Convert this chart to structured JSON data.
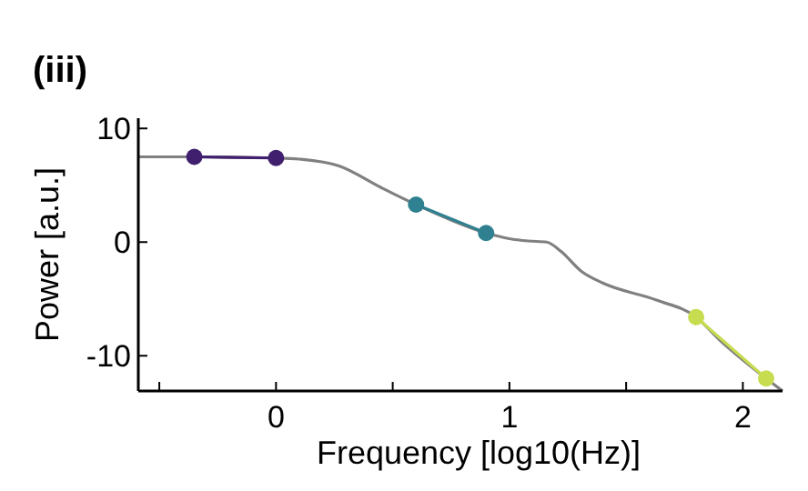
{
  "chart_data": {
    "type": "line",
    "title": "(iii)",
    "xlabel": "Frequency [log10(Hz)]",
    "ylabel": "Power [a.u.]",
    "xlim": [
      -0.59,
      2.17
    ],
    "ylim": [
      -13.1,
      10.9
    ],
    "xticks": [
      {
        "value": -0.5,
        "label": null
      },
      0,
      {
        "value": 0.5,
        "label": null
      },
      1,
      {
        "value": 1.5,
        "label": null
      },
      2
    ],
    "yticks": [
      -10,
      0,
      10
    ],
    "grid": false,
    "series": [
      {
        "color": "#808080",
        "marker": "none",
        "x": [
          -0.59,
          -0.35,
          0,
          0.1,
          0.27,
          0.45,
          0.6,
          0.9,
          1.0,
          1.08,
          1.16,
          1.22,
          1.31,
          1.4,
          1.63,
          1.8,
          1.9,
          2.1,
          2.17
        ],
        "values": [
          7.5,
          7.5,
          7.4,
          7.3,
          6.7,
          4.8,
          3.3,
          0.8,
          0.3,
          0.1,
          0,
          -0.8,
          -2.6,
          -3.6,
          -5.1,
          -6.6,
          -8.6,
          -12,
          -13.1
        ]
      },
      {
        "color": "#3f1f6e",
        "marker": "circle",
        "x": [
          -0.35,
          0
        ],
        "values": [
          7.5,
          7.4
        ]
      },
      {
        "color": "#2f8090",
        "marker": "circle",
        "x": [
          0.6,
          0.9
        ],
        "values": [
          3.3,
          0.8
        ]
      },
      {
        "color": "#c8dc50",
        "marker": "circle",
        "x": [
          1.8,
          2.1
        ],
        "values": [
          -6.6,
          -12
        ]
      }
    ]
  }
}
